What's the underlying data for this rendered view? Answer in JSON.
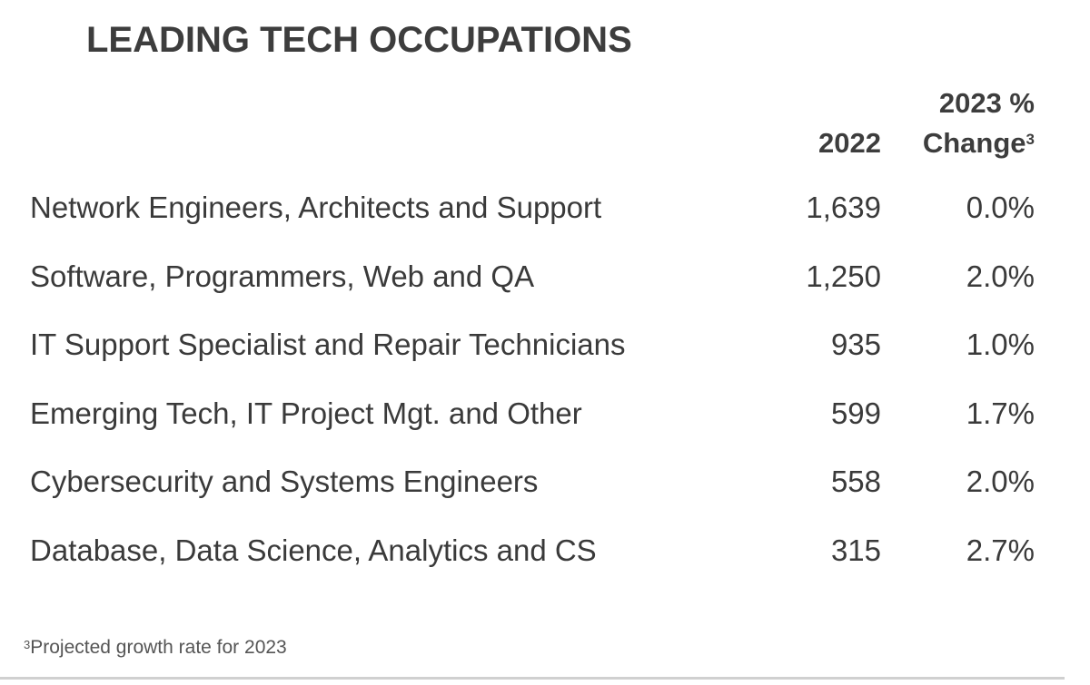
{
  "title": "LEADING TECH OCCUPATIONS",
  "columns": {
    "year": "2022",
    "change_line1": "2023 %",
    "change_line2": "Change",
    "change_footnote_marker": "3"
  },
  "rows": [
    {
      "occupation": "Network Engineers, Architects and Support",
      "value_2022": "1,639",
      "change_2023": "0.0%"
    },
    {
      "occupation": "Software, Programmers, Web and QA",
      "value_2022": "1,250",
      "change_2023": "2.0%"
    },
    {
      "occupation": "IT Support Specialist and Repair Technicians",
      "value_2022": "935",
      "change_2023": "1.0%"
    },
    {
      "occupation": "Emerging Tech, IT Project Mgt. and Other",
      "value_2022": "599",
      "change_2023": "1.7%"
    },
    {
      "occupation": "Cybersecurity and Systems Engineers",
      "value_2022": "558",
      "change_2023": "2.0%"
    },
    {
      "occupation": "Database, Data Science, Analytics and CS",
      "value_2022": "315",
      "change_2023": "2.7%"
    }
  ],
  "footnote": {
    "marker": "3",
    "text": "Projected growth rate for 2023"
  },
  "colors": {
    "text": "#3a3a3a",
    "rule": "#d0d0d0"
  }
}
